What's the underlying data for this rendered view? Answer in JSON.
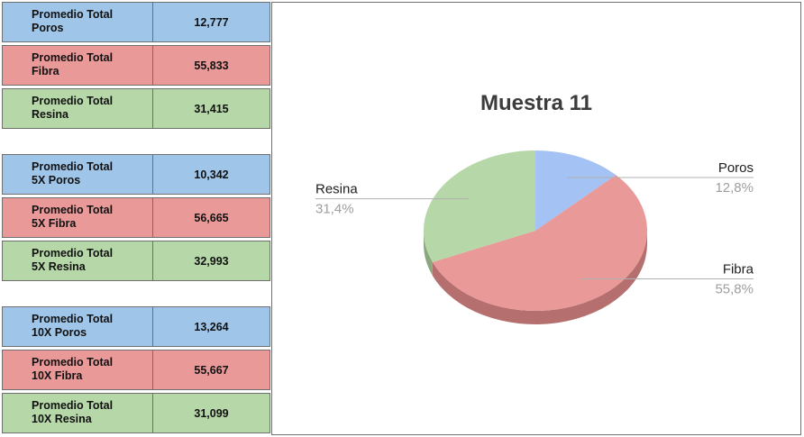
{
  "table": {
    "rows": [
      {
        "label": "Promedio  Total\nPoros",
        "value": "12,777",
        "color": "#9fc5e8"
      },
      {
        "label": "Promedio  Total\nFibra",
        "value": "55,833",
        "color": "#ea9999"
      },
      {
        "label": "Promedio  Total\nResina",
        "value": "31,415",
        "color": "#b6d7a8"
      },
      {
        "label": "Promedio  Total\n5X Poros",
        "value": "10,342",
        "color": "#9fc5e8"
      },
      {
        "label": "Promedio  Total\n5X Fibra",
        "value": "56,665",
        "color": "#ea9999"
      },
      {
        "label": "Promedio  Total\n5X Resina",
        "value": "32,993",
        "color": "#b6d7a8"
      },
      {
        "label": "Promedio  Total\n10X Poros",
        "value": "13,264",
        "color": "#9fc5e8"
      },
      {
        "label": "Promedio  Total\n10X Fibra",
        "value": "55,667",
        "color": "#ea9999"
      },
      {
        "label": "Promedio  Total\n10X Resina",
        "value": "31,099",
        "color": "#b6d7a8"
      }
    ]
  },
  "chart_data": {
    "type": "pie",
    "title": "Muestra 11",
    "three_d": true,
    "slices": [
      {
        "name": "Poros",
        "value": 12.8,
        "pct_label": "12,8%",
        "color": "#a4c2f4",
        "side_color": "#7f96bf"
      },
      {
        "name": "Fibra",
        "value": 55.8,
        "pct_label": "55,8%",
        "color": "#ea9999",
        "side_color": "#b56f6f"
      },
      {
        "name": "Resina",
        "value": 31.4,
        "pct_label": "31,4%",
        "color": "#b6d7a8",
        "side_color": "#8aa77e"
      }
    ],
    "label_color": "#202020",
    "pct_color": "#9e9e9e",
    "legend": "labels-outside"
  }
}
